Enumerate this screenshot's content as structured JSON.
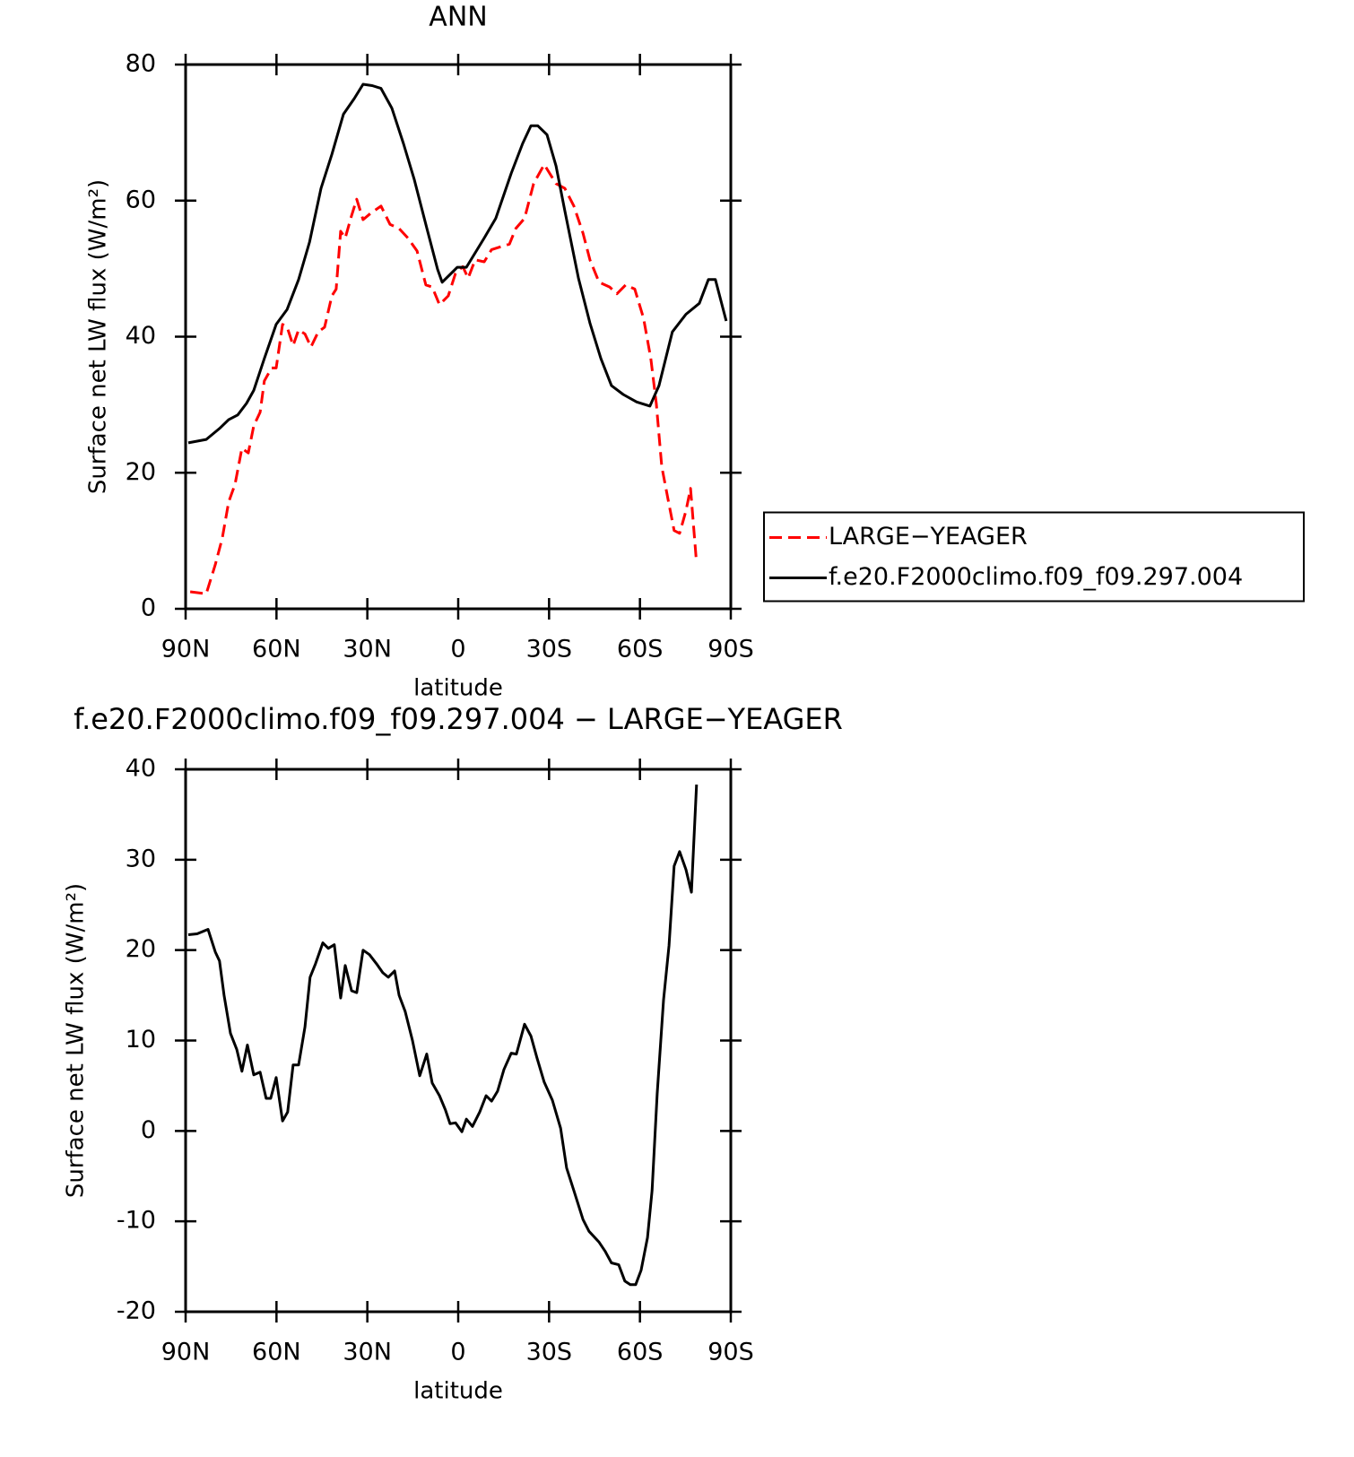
{
  "chart_data": [
    {
      "type": "line",
      "title": "ANN",
      "xlabel": "latitude",
      "ylabel": "Surface net LW flux (W/m²)",
      "xlim": [
        90,
        -90
      ],
      "ylim": [
        0,
        80
      ],
      "xticks": [
        {
          "value": 90,
          "label": "90N"
        },
        {
          "value": 60,
          "label": "60N"
        },
        {
          "value": 30,
          "label": "30N"
        },
        0,
        {
          "value": -30,
          "label": "30S"
        },
        {
          "value": -60,
          "label": "60S"
        },
        {
          "value": -90,
          "label": "90S"
        }
      ],
      "yticks": [
        0,
        20,
        40,
        60,
        80
      ],
      "legend": "right",
      "series": [
        {
          "name": "LARGE−YEAGER",
          "color": "#ff0000",
          "style": "dashed",
          "x": [
            88.5,
            83.2,
            80.2,
            77.9,
            75.8,
            73.7,
            71.4,
            69.3,
            67.5,
            65.4,
            64,
            61.6,
            60.1,
            58,
            56.5,
            54.5,
            52.7,
            50.6,
            48.6,
            46.2,
            44.1,
            41.7,
            40.3,
            38.8,
            37.3,
            35.2,
            33.5,
            31.4,
            29,
            25.5,
            22.5,
            19.5,
            16.6,
            13.6,
            10.7,
            8.6,
            6.2,
            3.3,
            0.9,
            -1.5,
            -3.3,
            -5.6,
            -8.6,
            -11,
            -13.9,
            -16.9,
            -19,
            -21.9,
            -24.9,
            -28.4,
            -32.3,
            -35.2,
            -38.2,
            -41.2,
            -43.5,
            -46.5,
            -50,
            -52.4,
            -55.3,
            -58.3,
            -61.2,
            -63.6,
            -65.4,
            -67.2,
            -69.2,
            -71.3,
            -73.1,
            -75.2,
            -76.7,
            -78.7
          ],
          "values": [
            2.5,
            2.2,
            6.5,
            10.4,
            15.7,
            18.3,
            23.6,
            22.9,
            26.9,
            28.9,
            33.5,
            35.4,
            35.4,
            41.8,
            41.4,
            38.7,
            41,
            40.4,
            38.5,
            40.7,
            41.4,
            46,
            47,
            55.5,
            54.5,
            57.8,
            60.2,
            57.2,
            58.1,
            59.2,
            56.5,
            55.9,
            54.5,
            52.6,
            47.6,
            47.3,
            44.7,
            46,
            49.3,
            50.3,
            48.6,
            51.3,
            51,
            52.8,
            53.2,
            53.6,
            55.9,
            57.4,
            62.5,
            65.3,
            62.5,
            61.8,
            59.2,
            55.2,
            51.3,
            48,
            47.3,
            46.3,
            47.6,
            47,
            42.7,
            36.8,
            30.2,
            20.9,
            16.3,
            11.5,
            11.1,
            14.4,
            17.7,
            6.7
          ]
        },
        {
          "name": "f.e20.F2000climo.f09_f09.297.004",
          "color": "#000000",
          "style": "solid",
          "x": [
            89.1,
            83.2,
            78.8,
            75.8,
            72.8,
            69.9,
            67.5,
            64,
            60.1,
            56.5,
            52.7,
            49.1,
            45.3,
            41.7,
            37.9,
            34.3,
            31.4,
            28.4,
            25.5,
            21.9,
            18.1,
            14.5,
            10.7,
            6.8,
            5.3,
            0.3,
            -2.7,
            -8.6,
            -12.4,
            -17.5,
            -21.3,
            -24,
            -26.3,
            -29.3,
            -32.3,
            -35.2,
            -39.7,
            -43.5,
            -47.1,
            -50.6,
            -54.5,
            -58.9,
            -63.3,
            -66.3,
            -70.7,
            -75.2,
            -79.6,
            -82.6,
            -84.9,
            -88.5
          ],
          "values": [
            24.4,
            24.9,
            26.5,
            27.8,
            28.5,
            30.2,
            32.1,
            36.8,
            41.8,
            44,
            48.4,
            53.9,
            61.8,
            66.8,
            72.7,
            75,
            77.1,
            76.9,
            76.5,
            73.6,
            68.4,
            63.1,
            56.5,
            49.9,
            48,
            50.2,
            50.2,
            54.5,
            57.4,
            64,
            68.4,
            71,
            71,
            69.7,
            65.1,
            58.5,
            48.6,
            42,
            36.8,
            32.8,
            31.5,
            30.4,
            29.8,
            32.8,
            40.7,
            43.3,
            44.9,
            48.4,
            48.4,
            42.3
          ]
        }
      ]
    },
    {
      "type": "line",
      "title": "f.e20.F2000climo.f09_f09.297.004 − LARGE−YEAGER",
      "xlabel": "latitude",
      "ylabel": "Surface net LW flux (W/m²)",
      "xlim": [
        90,
        -90
      ],
      "ylim": [
        -20,
        40
      ],
      "xticks": [
        {
          "value": 90,
          "label": "90N"
        },
        {
          "value": 60,
          "label": "60N"
        },
        {
          "value": 30,
          "label": "30N"
        },
        0,
        {
          "value": -30,
          "label": "30S"
        },
        {
          "value": -60,
          "label": "60S"
        },
        {
          "value": -90,
          "label": "90S"
        }
      ],
      "yticks": [
        -20,
        -10,
        0,
        10,
        20,
        30,
        40
      ],
      "series": [
        {
          "color": "#000000",
          "style": "solid",
          "x": [
            89.1,
            86.2,
            82.6,
            80.2,
            78.8,
            77.3,
            75.2,
            73.1,
            71.4,
            69.6,
            67.5,
            65.4,
            63.4,
            61.9,
            60.1,
            58,
            56.3,
            54.5,
            52.7,
            50.6,
            48.9,
            47.1,
            44.7,
            42.9,
            40.9,
            38.8,
            37.3,
            35.2,
            33.5,
            31.4,
            29.3,
            27,
            24.9,
            23.1,
            21,
            19.5,
            17.5,
            15.1,
            12.7,
            10.4,
            8.6,
            6.2,
            4.2,
            2.7,
            0.9,
            -1.2,
            -2.7,
            -4.7,
            -7.1,
            -9.2,
            -11,
            -13,
            -15.1,
            -17.5,
            -19.2,
            -21.9,
            -24,
            -26,
            -28.4,
            -31.1,
            -33.8,
            -35.8,
            -38.2,
            -41.2,
            -43.2,
            -46.5,
            -48.5,
            -50.6,
            -53,
            -55,
            -56.8,
            -58.6,
            -60.4,
            -62.5,
            -64,
            -65.7,
            -67.8,
            -69.6,
            -71.3,
            -73.1,
            -75.2,
            -77,
            -78.7
          ],
          "values": [
            21.7,
            21.8,
            22.3,
            19.8,
            18.8,
            15,
            10.8,
            9,
            6.6,
            9.5,
            6.2,
            6.5,
            3.6,
            3.6,
            5.9,
            1.1,
            2.1,
            7.3,
            7.3,
            11.5,
            17,
            18.5,
            20.8,
            20.2,
            20.6,
            14.7,
            18.3,
            15.5,
            15.3,
            20,
            19.5,
            18.5,
            17.5,
            17,
            17.7,
            15,
            13.2,
            10,
            6.1,
            8.5,
            5.3,
            3.9,
            2.3,
            0.8,
            0.9,
            -0.1,
            1.3,
            0.5,
            2.1,
            3.9,
            3.3,
            4.4,
            6.8,
            8.6,
            8.5,
            11.8,
            10.5,
            8.1,
            5.4,
            3.4,
            0.3,
            -4.1,
            -6.6,
            -9.8,
            -11.1,
            -12.3,
            -13.3,
            -14.6,
            -14.8,
            -16.6,
            -17,
            -17,
            -15.4,
            -11.8,
            -6.6,
            4.1,
            14.5,
            20.5,
            29.3,
            30.9,
            28.9,
            26.4,
            38.3
          ]
        }
      ]
    }
  ]
}
